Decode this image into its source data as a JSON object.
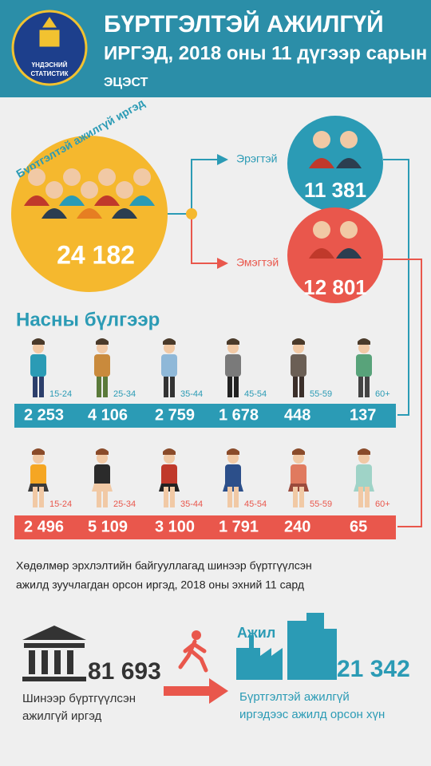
{
  "header": {
    "title_line1": "БҮРТГЭЛТЭЙ АЖИЛГҮЙ",
    "title_line2": "ИРГЭД, 2018 оны 11 дүгээр сарын",
    "title_line3": "ЭЦЭСТ",
    "logo_lines": [
      "ҮНДЭСНИЙ",
      "СТАТИСТИК"
    ]
  },
  "total": {
    "label": "Бүртгэлтэй ажилгүй иргэд",
    "value": "24 182"
  },
  "male": {
    "label": "Эрэгтэй",
    "value": "11 381"
  },
  "female": {
    "label": "Эмэгтэй",
    "value": "12 801"
  },
  "age_section_title": "Насны бүлгээр",
  "male_age_groups": [
    {
      "label": "15-24",
      "value": "2 253"
    },
    {
      "label": "25-34",
      "value": "4 106"
    },
    {
      "label": "35-44",
      "value": "2 759"
    },
    {
      "label": "45-54",
      "value": "1 678"
    },
    {
      "label": "55-59",
      "value": "448"
    },
    {
      "label": "60+",
      "value": "137"
    }
  ],
  "female_age_groups": [
    {
      "label": "15-24",
      "value": "2 496"
    },
    {
      "label": "25-34",
      "value": "5 109"
    },
    {
      "label": "35-44",
      "value": "3 100"
    },
    {
      "label": "45-54",
      "value": "1 791"
    },
    {
      "label": "55-59",
      "value": "240"
    },
    {
      "label": "60+",
      "value": "65"
    }
  ],
  "note": [
    "Хөдөлмөр эрхлэлтийн байгууллагад шинээр бүртгүүлсэн",
    "ажилд зуучлагдан орсон иргэд, 2018 оны эхний 11 сард"
  ],
  "new_registered": {
    "value": "81 693",
    "label_lines": [
      "Шинээр бүртгүүлсэн",
      "ажилгүй иргэд"
    ]
  },
  "employed": {
    "header": "Ажил",
    "value": "21 342",
    "label_lines": [
      "Бүртгэлтэй ажилгүй",
      "иргэдээс ажилд орсон хүн"
    ]
  }
}
